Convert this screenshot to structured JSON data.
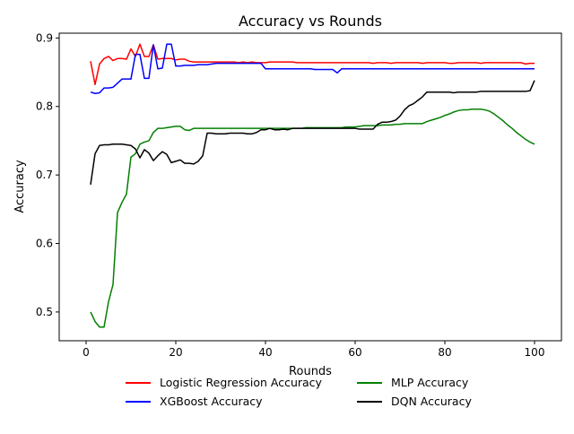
{
  "chart_data": {
    "type": "line",
    "title": "Accuracy vs Rounds",
    "xlabel": "Rounds",
    "ylabel": "Accuracy",
    "xlim": [
      -6,
      106
    ],
    "ylim": [
      0.458,
      0.907
    ],
    "xticks": [
      0,
      20,
      40,
      60,
      80,
      100
    ],
    "yticks": [
      0.5,
      0.6,
      0.7,
      0.8,
      0.9
    ],
    "xtick_labels": [
      "0",
      "20",
      "40",
      "60",
      "80",
      "100"
    ],
    "ytick_labels": [
      "0.5",
      "0.6",
      "0.7",
      "0.8",
      "0.9"
    ],
    "grid": false,
    "legend_position": "below",
    "series": [
      {
        "name": "Logistic Regression Accuracy",
        "color": "#ff0000",
        "x": [
          1,
          2,
          3,
          4,
          5,
          6,
          7,
          8,
          9,
          10,
          11,
          12,
          13,
          14,
          15,
          16,
          17,
          18,
          19,
          20,
          21,
          22,
          23,
          24,
          25,
          26,
          27,
          28,
          29,
          30,
          31,
          32,
          33,
          34,
          35,
          36,
          37,
          38,
          39,
          40,
          41,
          42,
          43,
          44,
          45,
          46,
          47,
          48,
          49,
          50,
          51,
          52,
          53,
          54,
          55,
          56,
          57,
          58,
          59,
          60,
          61,
          62,
          63,
          64,
          65,
          66,
          67,
          68,
          69,
          70,
          71,
          72,
          73,
          74,
          75,
          76,
          77,
          78,
          79,
          80,
          81,
          82,
          83,
          84,
          85,
          86,
          87,
          88,
          89,
          90,
          91,
          92,
          93,
          94,
          95,
          96,
          97,
          98,
          99,
          100
        ],
        "y": [
          0.866,
          0.832,
          0.862,
          0.87,
          0.873,
          0.867,
          0.87,
          0.87,
          0.869,
          0.884,
          0.873,
          0.891,
          0.873,
          0.873,
          0.89,
          0.869,
          0.87,
          0.87,
          0.87,
          0.868,
          0.869,
          0.869,
          0.866,
          0.865,
          0.865,
          0.865,
          0.865,
          0.865,
          0.865,
          0.865,
          0.865,
          0.865,
          0.865,
          0.864,
          0.865,
          0.864,
          0.865,
          0.864,
          0.864,
          0.864,
          0.865,
          0.865,
          0.865,
          0.865,
          0.865,
          0.865,
          0.864,
          0.864,
          0.864,
          0.864,
          0.864,
          0.864,
          0.864,
          0.864,
          0.864,
          0.864,
          0.864,
          0.864,
          0.864,
          0.864,
          0.864,
          0.864,
          0.864,
          0.863,
          0.864,
          0.864,
          0.864,
          0.863,
          0.864,
          0.864,
          0.864,
          0.864,
          0.864,
          0.864,
          0.863,
          0.864,
          0.864,
          0.864,
          0.864,
          0.864,
          0.863,
          0.863,
          0.864,
          0.864,
          0.864,
          0.864,
          0.864,
          0.863,
          0.864,
          0.864,
          0.864,
          0.864,
          0.864,
          0.864,
          0.864,
          0.864,
          0.864,
          0.862,
          0.863,
          0.863
        ]
      },
      {
        "name": "XGBoost Accuracy",
        "color": "#0000ff",
        "x": [
          1,
          2,
          3,
          4,
          5,
          6,
          7,
          8,
          9,
          10,
          11,
          12,
          13,
          14,
          15,
          16,
          17,
          18,
          19,
          20,
          21,
          22,
          23,
          24,
          25,
          26,
          27,
          28,
          29,
          30,
          31,
          32,
          33,
          34,
          35,
          36,
          37,
          38,
          39,
          40,
          41,
          42,
          43,
          44,
          45,
          46,
          47,
          48,
          49,
          50,
          51,
          52,
          53,
          54,
          55,
          56,
          57,
          58,
          59,
          60,
          61,
          62,
          63,
          64,
          65,
          66,
          67,
          68,
          69,
          70,
          71,
          72,
          73,
          74,
          75,
          76,
          77,
          78,
          79,
          80,
          81,
          82,
          83,
          84,
          85,
          86,
          87,
          88,
          89,
          90,
          91,
          92,
          93,
          94,
          95,
          96,
          97,
          98,
          99,
          100
        ],
        "y": [
          0.821,
          0.819,
          0.82,
          0.827,
          0.827,
          0.828,
          0.834,
          0.84,
          0.84,
          0.84,
          0.876,
          0.876,
          0.841,
          0.841,
          0.89,
          0.855,
          0.856,
          0.891,
          0.891,
          0.859,
          0.859,
          0.86,
          0.86,
          0.86,
          0.861,
          0.861,
          0.861,
          0.862,
          0.863,
          0.863,
          0.863,
          0.863,
          0.863,
          0.863,
          0.863,
          0.863,
          0.863,
          0.863,
          0.863,
          0.855,
          0.855,
          0.855,
          0.855,
          0.855,
          0.855,
          0.855,
          0.855,
          0.855,
          0.855,
          0.855,
          0.854,
          0.854,
          0.854,
          0.854,
          0.854,
          0.849,
          0.855,
          0.855,
          0.855,
          0.855,
          0.855,
          0.855,
          0.855,
          0.855,
          0.855,
          0.855,
          0.855,
          0.855,
          0.855,
          0.855,
          0.855,
          0.855,
          0.855,
          0.855,
          0.855,
          0.855,
          0.855,
          0.855,
          0.855,
          0.855,
          0.855,
          0.855,
          0.855,
          0.855,
          0.855,
          0.855,
          0.855,
          0.855,
          0.855,
          0.855,
          0.855,
          0.855,
          0.855,
          0.855,
          0.855,
          0.855,
          0.855,
          0.855,
          0.855,
          0.855
        ]
      },
      {
        "name": "MLP Accuracy",
        "color": "#008000",
        "x": [
          1,
          2,
          3,
          4,
          5,
          6,
          7,
          8,
          9,
          10,
          11,
          12,
          13,
          14,
          15,
          16,
          17,
          18,
          19,
          20,
          21,
          22,
          23,
          24,
          25,
          26,
          27,
          28,
          29,
          30,
          31,
          32,
          33,
          34,
          35,
          36,
          37,
          38,
          39,
          40,
          41,
          42,
          43,
          44,
          45,
          46,
          47,
          48,
          49,
          50,
          51,
          52,
          53,
          54,
          55,
          56,
          57,
          58,
          59,
          60,
          61,
          62,
          63,
          64,
          65,
          66,
          67,
          68,
          69,
          70,
          71,
          72,
          73,
          74,
          75,
          76,
          77,
          78,
          79,
          80,
          81,
          82,
          83,
          84,
          85,
          86,
          87,
          88,
          89,
          90,
          91,
          92,
          93,
          94,
          95,
          96,
          97,
          98,
          99,
          100
        ],
        "y": [
          0.5,
          0.486,
          0.478,
          0.478,
          0.515,
          0.54,
          0.645,
          0.66,
          0.672,
          0.726,
          0.731,
          0.745,
          0.748,
          0.75,
          0.762,
          0.768,
          0.768,
          0.769,
          0.77,
          0.771,
          0.771,
          0.766,
          0.765,
          0.768,
          0.768,
          0.768,
          0.768,
          0.768,
          0.768,
          0.768,
          0.768,
          0.768,
          0.768,
          0.768,
          0.768,
          0.768,
          0.768,
          0.768,
          0.768,
          0.768,
          0.768,
          0.768,
          0.768,
          0.768,
          0.768,
          0.768,
          0.768,
          0.768,
          0.769,
          0.769,
          0.769,
          0.769,
          0.769,
          0.769,
          0.769,
          0.769,
          0.769,
          0.77,
          0.77,
          0.77,
          0.771,
          0.772,
          0.772,
          0.772,
          0.772,
          0.773,
          0.773,
          0.773,
          0.774,
          0.774,
          0.775,
          0.775,
          0.775,
          0.775,
          0.775,
          0.778,
          0.78,
          0.782,
          0.784,
          0.787,
          0.789,
          0.792,
          0.794,
          0.795,
          0.795,
          0.796,
          0.796,
          0.796,
          0.795,
          0.793,
          0.789,
          0.784,
          0.779,
          0.773,
          0.768,
          0.762,
          0.757,
          0.752,
          0.748,
          0.745
        ]
      },
      {
        "name": "DQN Accuracy",
        "color": "#000000",
        "x": [
          1,
          2,
          3,
          4,
          5,
          6,
          7,
          8,
          9,
          10,
          11,
          12,
          13,
          14,
          15,
          16,
          17,
          18,
          19,
          20,
          21,
          22,
          23,
          24,
          25,
          26,
          27,
          28,
          29,
          30,
          31,
          32,
          33,
          34,
          35,
          36,
          37,
          38,
          39,
          40,
          41,
          42,
          43,
          44,
          45,
          46,
          47,
          48,
          49,
          50,
          51,
          52,
          53,
          54,
          55,
          56,
          57,
          58,
          59,
          60,
          61,
          62,
          63,
          64,
          65,
          66,
          67,
          68,
          69,
          70,
          71,
          72,
          73,
          74,
          75,
          76,
          77,
          78,
          79,
          80,
          81,
          82,
          83,
          84,
          85,
          86,
          87,
          88,
          89,
          90,
          91,
          92,
          93,
          94,
          95,
          96,
          97,
          98,
          99,
          100
        ],
        "y": [
          0.686,
          0.731,
          0.743,
          0.744,
          0.744,
          0.745,
          0.745,
          0.745,
          0.744,
          0.743,
          0.738,
          0.725,
          0.737,
          0.732,
          0.721,
          0.728,
          0.734,
          0.73,
          0.718,
          0.72,
          0.722,
          0.717,
          0.717,
          0.716,
          0.72,
          0.728,
          0.761,
          0.761,
          0.76,
          0.76,
          0.76,
          0.761,
          0.761,
          0.761,
          0.761,
          0.76,
          0.76,
          0.762,
          0.766,
          0.766,
          0.768,
          0.766,
          0.766,
          0.767,
          0.766,
          0.768,
          0.768,
          0.768,
          0.768,
          0.768,
          0.768,
          0.768,
          0.768,
          0.768,
          0.768,
          0.768,
          0.768,
          0.768,
          0.768,
          0.768,
          0.767,
          0.767,
          0.767,
          0.767,
          0.774,
          0.777,
          0.777,
          0.778,
          0.78,
          0.786,
          0.795,
          0.801,
          0.804,
          0.809,
          0.814,
          0.821,
          0.821,
          0.821,
          0.821,
          0.821,
          0.821,
          0.82,
          0.821,
          0.821,
          0.821,
          0.821,
          0.821,
          0.822,
          0.822,
          0.822,
          0.822,
          0.822,
          0.822,
          0.822,
          0.822,
          0.822,
          0.822,
          0.822,
          0.823,
          0.838
        ]
      }
    ]
  }
}
